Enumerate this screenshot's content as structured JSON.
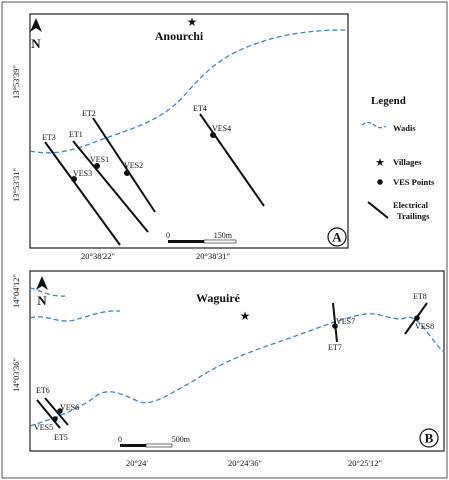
{
  "colors": {
    "wadi": "#3f86c7",
    "line": "#111111",
    "frame": "#222222"
  },
  "legend": {
    "title": "Legend",
    "items": [
      {
        "symbol": "wadi-line",
        "label": "Wadis"
      },
      {
        "symbol": "star",
        "label": "Villages"
      },
      {
        "symbol": "dot",
        "label": "VES Points"
      },
      {
        "symbol": "trailing-line",
        "label_line1": "Electrical",
        "label_line2": "Trailings"
      }
    ]
  },
  "map_a": {
    "panel_label": "A",
    "village": "Anourchi",
    "north": "N",
    "lat_ticks": [
      "13°53'39\"",
      "13°53'31\""
    ],
    "lon_ticks": [
      "20°38'22\"",
      "20°38'31\""
    ],
    "scale": {
      "start": "0",
      "end": "150m"
    },
    "trailings": [
      "ET1",
      "ET2",
      "ET3",
      "ET4"
    ],
    "ves": [
      "VES1",
      "VES2",
      "VES3",
      "VES4"
    ]
  },
  "map_b": {
    "panel_label": "B",
    "village": "Waguiré",
    "north": "N",
    "lat_ticks": [
      "14°04'12\"",
      "14°03'36\""
    ],
    "lon_ticks": [
      "20°24'",
      "20°24'36\"",
      "20°25'12\""
    ],
    "scale": {
      "start": "0",
      "end": "500m"
    },
    "trailings": [
      "ET5",
      "ET6",
      "ET7",
      "ET8"
    ],
    "ves": [
      "VES5",
      "VES6",
      "VES7",
      "VES8"
    ]
  }
}
